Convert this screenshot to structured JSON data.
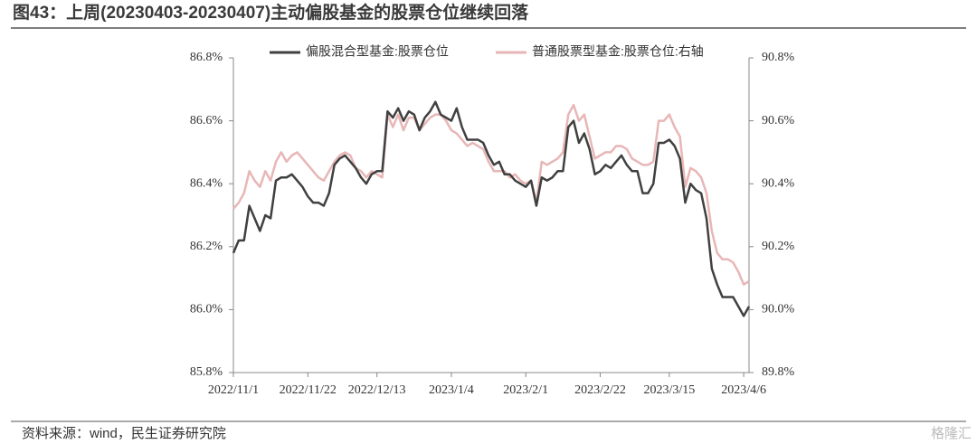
{
  "chart_data": {
    "type": "line",
    "title": "图43：上周(20230403-20230407)主动偏股基金的股票仓位继续回落",
    "source": "资料来源：wind，民生证券研究院",
    "watermark": "格隆汇",
    "categories": [
      "2022/11/1",
      null,
      null,
      null,
      null,
      null,
      null,
      null,
      null,
      null,
      null,
      null,
      null,
      null,
      "2022/11/22",
      null,
      null,
      null,
      null,
      null,
      null,
      null,
      null,
      null,
      null,
      null,
      null,
      "2022/12/13",
      null,
      null,
      null,
      null,
      null,
      null,
      null,
      null,
      null,
      null,
      null,
      null,
      null,
      "2023/1/4",
      null,
      null,
      null,
      null,
      null,
      null,
      null,
      null,
      null,
      null,
      null,
      null,
      null,
      "2023/2/1",
      null,
      null,
      null,
      null,
      null,
      null,
      null,
      null,
      null,
      null,
      null,
      null,
      null,
      "2023/2/22",
      null,
      null,
      null,
      null,
      null,
      null,
      null,
      null,
      null,
      null,
      null,
      null,
      "2023/3/15",
      null,
      null,
      null,
      null,
      null,
      null,
      null,
      null,
      null,
      null,
      null,
      null,
      null,
      "2023/4/6",
      null
    ],
    "series": [
      {
        "name": "偏股混合型基金:股票仓位",
        "color": "#404040",
        "axis": "y",
        "values": [
          86.18,
          86.22,
          86.22,
          86.33,
          86.29,
          86.25,
          86.3,
          86.29,
          86.41,
          86.42,
          86.42,
          86.43,
          86.41,
          86.39,
          86.36,
          86.34,
          86.34,
          86.33,
          86.37,
          86.46,
          86.48,
          86.49,
          86.47,
          86.45,
          86.42,
          86.4,
          86.43,
          86.44,
          86.44,
          86.63,
          86.61,
          86.64,
          86.6,
          86.63,
          86.62,
          86.57,
          86.61,
          86.63,
          86.66,
          86.62,
          86.61,
          86.6,
          86.64,
          86.58,
          86.54,
          86.54,
          86.54,
          86.53,
          86.49,
          86.46,
          86.47,
          86.43,
          86.43,
          86.41,
          86.4,
          86.39,
          86.41,
          86.33,
          86.42,
          86.41,
          86.42,
          86.44,
          86.44,
          86.58,
          86.6,
          86.53,
          86.56,
          86.51,
          86.43,
          86.44,
          86.46,
          86.45,
          86.47,
          86.49,
          86.46,
          86.44,
          86.44,
          86.37,
          86.37,
          86.4,
          86.53,
          86.53,
          86.54,
          86.52,
          86.48,
          86.34,
          86.4,
          86.38,
          86.37,
          86.29,
          86.13,
          86.08,
          86.04,
          86.04,
          86.04,
          86.01,
          85.98,
          86.01
        ]
      },
      {
        "name": "普通股票型基金:股票仓位:右轴",
        "color": "#e8b6b6",
        "axis": "y2",
        "values": [
          90.32,
          90.34,
          90.37,
          90.44,
          90.41,
          90.39,
          90.44,
          90.41,
          90.47,
          90.5,
          90.47,
          90.49,
          90.5,
          90.48,
          90.46,
          90.44,
          90.42,
          90.41,
          90.44,
          90.47,
          90.49,
          90.5,
          90.49,
          90.45,
          90.44,
          90.42,
          90.44,
          90.43,
          90.42,
          90.62,
          90.58,
          90.62,
          90.57,
          90.61,
          90.61,
          90.57,
          90.59,
          90.61,
          90.62,
          90.62,
          90.6,
          90.57,
          90.56,
          90.54,
          90.52,
          90.53,
          90.52,
          90.51,
          90.47,
          90.44,
          90.44,
          90.44,
          90.42,
          90.43,
          90.41,
          90.4,
          90.41,
          90.34,
          90.47,
          90.46,
          90.47,
          90.48,
          90.5,
          90.62,
          90.65,
          90.6,
          90.62,
          90.55,
          90.48,
          90.49,
          90.5,
          90.5,
          90.52,
          90.52,
          90.51,
          90.48,
          90.47,
          90.46,
          90.46,
          90.47,
          90.6,
          90.6,
          90.62,
          90.58,
          90.55,
          90.39,
          90.45,
          90.44,
          90.42,
          90.37,
          90.25,
          90.18,
          90.16,
          90.16,
          90.15,
          90.12,
          90.08,
          90.09
        ]
      }
    ],
    "ylim": [
      85.8,
      86.8
    ],
    "yticks": [
      {
        "value": 85.8,
        "label": "85.8%"
      },
      {
        "value": 86.0,
        "label": "86.0%"
      },
      {
        "value": 86.2,
        "label": "86.2%"
      },
      {
        "value": 86.4,
        "label": "86.4%"
      },
      {
        "value": 86.6,
        "label": "86.6%"
      },
      {
        "value": 86.8,
        "label": "86.8%"
      }
    ],
    "y2lim": [
      89.8,
      90.8
    ],
    "y2ticks": [
      {
        "value": 89.8,
        "label": "89.8%"
      },
      {
        "value": 90.0,
        "label": "90.0%"
      },
      {
        "value": 90.2,
        "label": "90.2%"
      },
      {
        "value": 90.4,
        "label": "90.4%"
      },
      {
        "value": 90.6,
        "label": "90.6%"
      },
      {
        "value": 90.8,
        "label": "90.8%"
      }
    ],
    "grid": false,
    "legend": "top"
  }
}
